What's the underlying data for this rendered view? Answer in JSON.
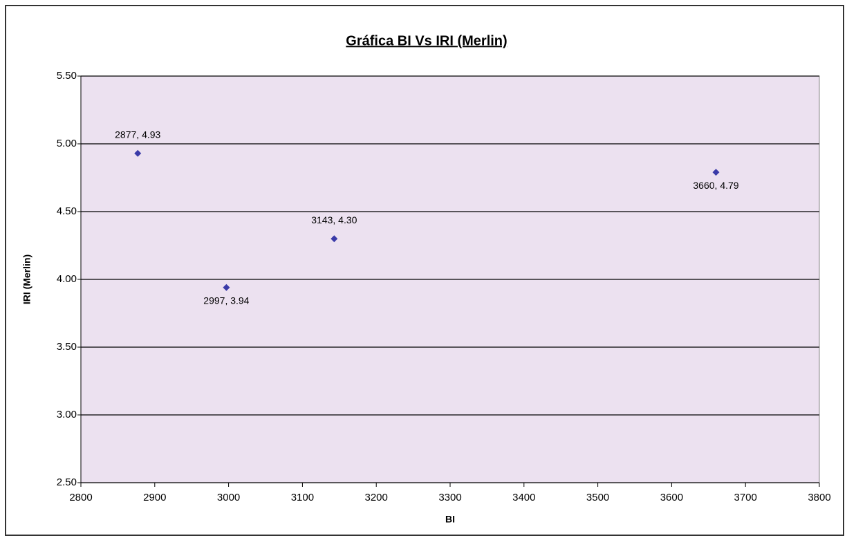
{
  "chart_data": {
    "type": "scatter",
    "title": "Gráfica BI Vs IRI (Merlin)",
    "x_label": "BI",
    "y_label": "IRI (Merlin)",
    "x": [
      2877,
      2997,
      3143,
      3660
    ],
    "values": [
      4.93,
      3.94,
      4.3,
      4.79
    ],
    "value_labels": [
      "2877, 4.93",
      "2997, 3.94",
      "3143, 4.30",
      "3660, 4.79"
    ],
    "color": "#3a3aa8",
    "xlim": [
      2800,
      3800
    ],
    "xticks": [
      2800,
      2900,
      3000,
      3100,
      3200,
      3300,
      3400,
      3500,
      3600,
      3700,
      3800
    ],
    "ylim": [
      2.5,
      5.5
    ],
    "yticks": [
      {
        "value": 2.5,
        "label": "2.50"
      },
      {
        "value": 3.0,
        "label": "3.00"
      },
      {
        "value": 3.5,
        "label": "3.50"
      },
      {
        "value": 4.0,
        "label": "4.00"
      },
      {
        "value": 4.5,
        "label": "4.50"
      },
      {
        "value": 5.0,
        "label": "5.00"
      },
      {
        "value": 5.5,
        "label": "5.50"
      }
    ],
    "grid": true
  }
}
